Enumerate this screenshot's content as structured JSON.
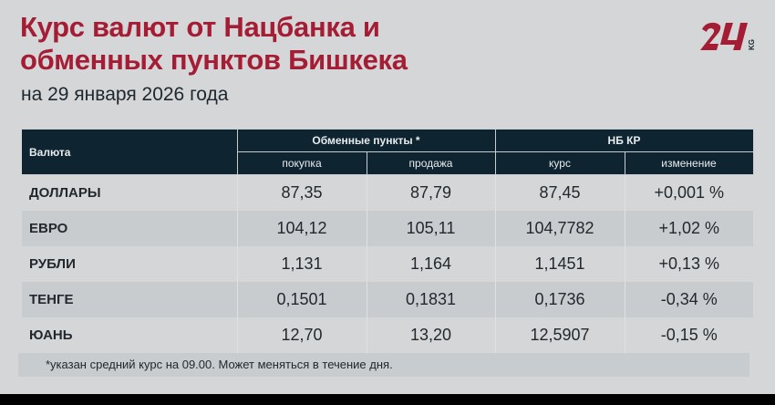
{
  "title_line1": "Курс валют от Нацбанка и",
  "title_line2": "обменных пунктов Бишкека",
  "subtitle": "на 29 января 2026 года",
  "logo": {
    "text": "24 KG",
    "color": "#a51d35"
  },
  "table": {
    "header_currency": "Валюта",
    "group_exchange": "Обменные пункты *",
    "group_nb": "НБ КР",
    "sub_buy": "покупка",
    "sub_sell": "продажа",
    "sub_rate": "курс",
    "sub_change": "изменение",
    "rows": [
      {
        "name": "ДОЛЛАРЫ",
        "buy": "87,35",
        "sell": "87,79",
        "rate": "87,45",
        "change": "+0,001 %"
      },
      {
        "name": "ЕВРО",
        "buy": "104,12",
        "sell": "105,11",
        "rate": "104,7782",
        "change": "+1,02 %"
      },
      {
        "name": "РУБЛИ",
        "buy": "1,131",
        "sell": "1,164",
        "rate": "1,1451",
        "change": "+0,13 %"
      },
      {
        "name": "ТЕНГЕ",
        "buy": "0,1501",
        "sell": "0,1831",
        "rate": "0,1736",
        "change": "-0,34 %"
      },
      {
        "name": "ЮАНЬ",
        "buy": "12,70",
        "sell": "13,20",
        "rate": "12,5907",
        "change": "-0,15 %"
      }
    ]
  },
  "footnote": "*указан средний курс на 09.00. Может меняться в течение дня.",
  "colors": {
    "title": "#a51d35",
    "header_bg": "#0e2430",
    "background": "#d5d6d8"
  }
}
